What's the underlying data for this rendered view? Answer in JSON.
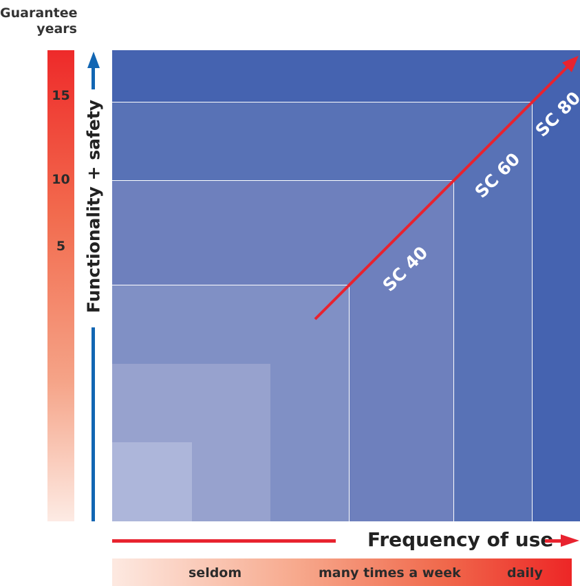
{
  "guarantee": {
    "title_line1": "Guarantee",
    "title_line2": "years",
    "ticks": [
      "15",
      "10",
      "5"
    ]
  },
  "y_axis": {
    "label": "Functionality + safety"
  },
  "x_axis": {
    "label": "Frequency of use",
    "categories": [
      "seldom",
      "many times a week",
      "daily"
    ]
  },
  "classes": [
    {
      "name": "SC 40"
    },
    {
      "name": "SC 60"
    },
    {
      "name": "SC 80"
    }
  ],
  "colors": {
    "diagram_dark": "#4563b0",
    "arrow_red": "#e8232f",
    "axis_blue": "#1266b3"
  }
}
